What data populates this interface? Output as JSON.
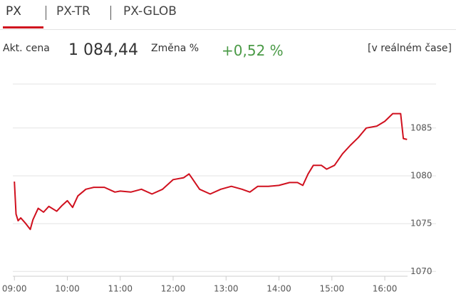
{
  "tabs": [
    "PX",
    "PX-TR",
    "PX-GLOB"
  ],
  "info": {
    "price_label": "Akt. cena",
    "price": "1 084,44",
    "change_label": "Změna %",
    "change": "+0,52 %",
    "mode": "[v reálném čase]"
  },
  "chart_data": {
    "type": "line",
    "color": "#d0101e",
    "grid": true,
    "x": [
      9.0,
      9.03,
      9.07,
      9.12,
      9.2,
      9.3,
      9.35,
      9.45,
      9.55,
      9.65,
      9.8,
      9.9,
      10.0,
      10.1,
      10.2,
      10.35,
      10.5,
      10.7,
      10.9,
      11.0,
      11.2,
      11.4,
      11.6,
      11.8,
      12.0,
      12.2,
      12.3,
      12.35,
      12.5,
      12.7,
      12.9,
      13.1,
      13.3,
      13.45,
      13.6,
      13.8,
      14.0,
      14.2,
      14.35,
      14.45,
      14.55,
      14.65,
      14.8,
      14.9,
      15.05,
      15.2,
      15.35,
      15.5,
      15.65,
      15.85,
      16.0,
      16.15,
      16.3,
      16.35,
      16.42
    ],
    "series": [
      {
        "values": [
          1079.4,
          1076.0,
          1075.3,
          1075.6,
          1075.1,
          1074.4,
          1075.4,
          1076.6,
          1076.2,
          1076.8,
          1076.3,
          1076.9,
          1077.4,
          1076.7,
          1077.9,
          1078.6,
          1078.8,
          1078.8,
          1078.3,
          1078.4,
          1078.3,
          1078.6,
          1078.1,
          1078.6,
          1079.6,
          1079.8,
          1080.2,
          1079.8,
          1078.6,
          1078.1,
          1078.6,
          1078.9,
          1078.6,
          1078.3,
          1078.9,
          1078.9,
          1079.0,
          1079.3,
          1079.3,
          1079.0,
          1080.2,
          1081.1,
          1081.1,
          1080.7,
          1081.1,
          1082.3,
          1083.2,
          1084.0,
          1085.0,
          1085.2,
          1085.7,
          1086.5,
          1086.5,
          1083.9,
          1083.8
        ]
      }
    ],
    "xlim": [
      8.97,
      16.43
    ],
    "xticks": [
      {
        "value": 9,
        "label": "09:00"
      },
      {
        "value": 10,
        "label": "10:00"
      },
      {
        "value": 11,
        "label": "11:00"
      },
      {
        "value": 12,
        "label": "12:00"
      },
      {
        "value": 13,
        "label": "13:00"
      },
      {
        "value": 14,
        "label": "14:00"
      },
      {
        "value": 15,
        "label": "15:00"
      },
      {
        "value": 16,
        "label": "16:00"
      }
    ],
    "ylim": [
      1069.5,
      1089.6
    ],
    "yticks": [
      1070,
      1075,
      1080,
      1085
    ]
  }
}
